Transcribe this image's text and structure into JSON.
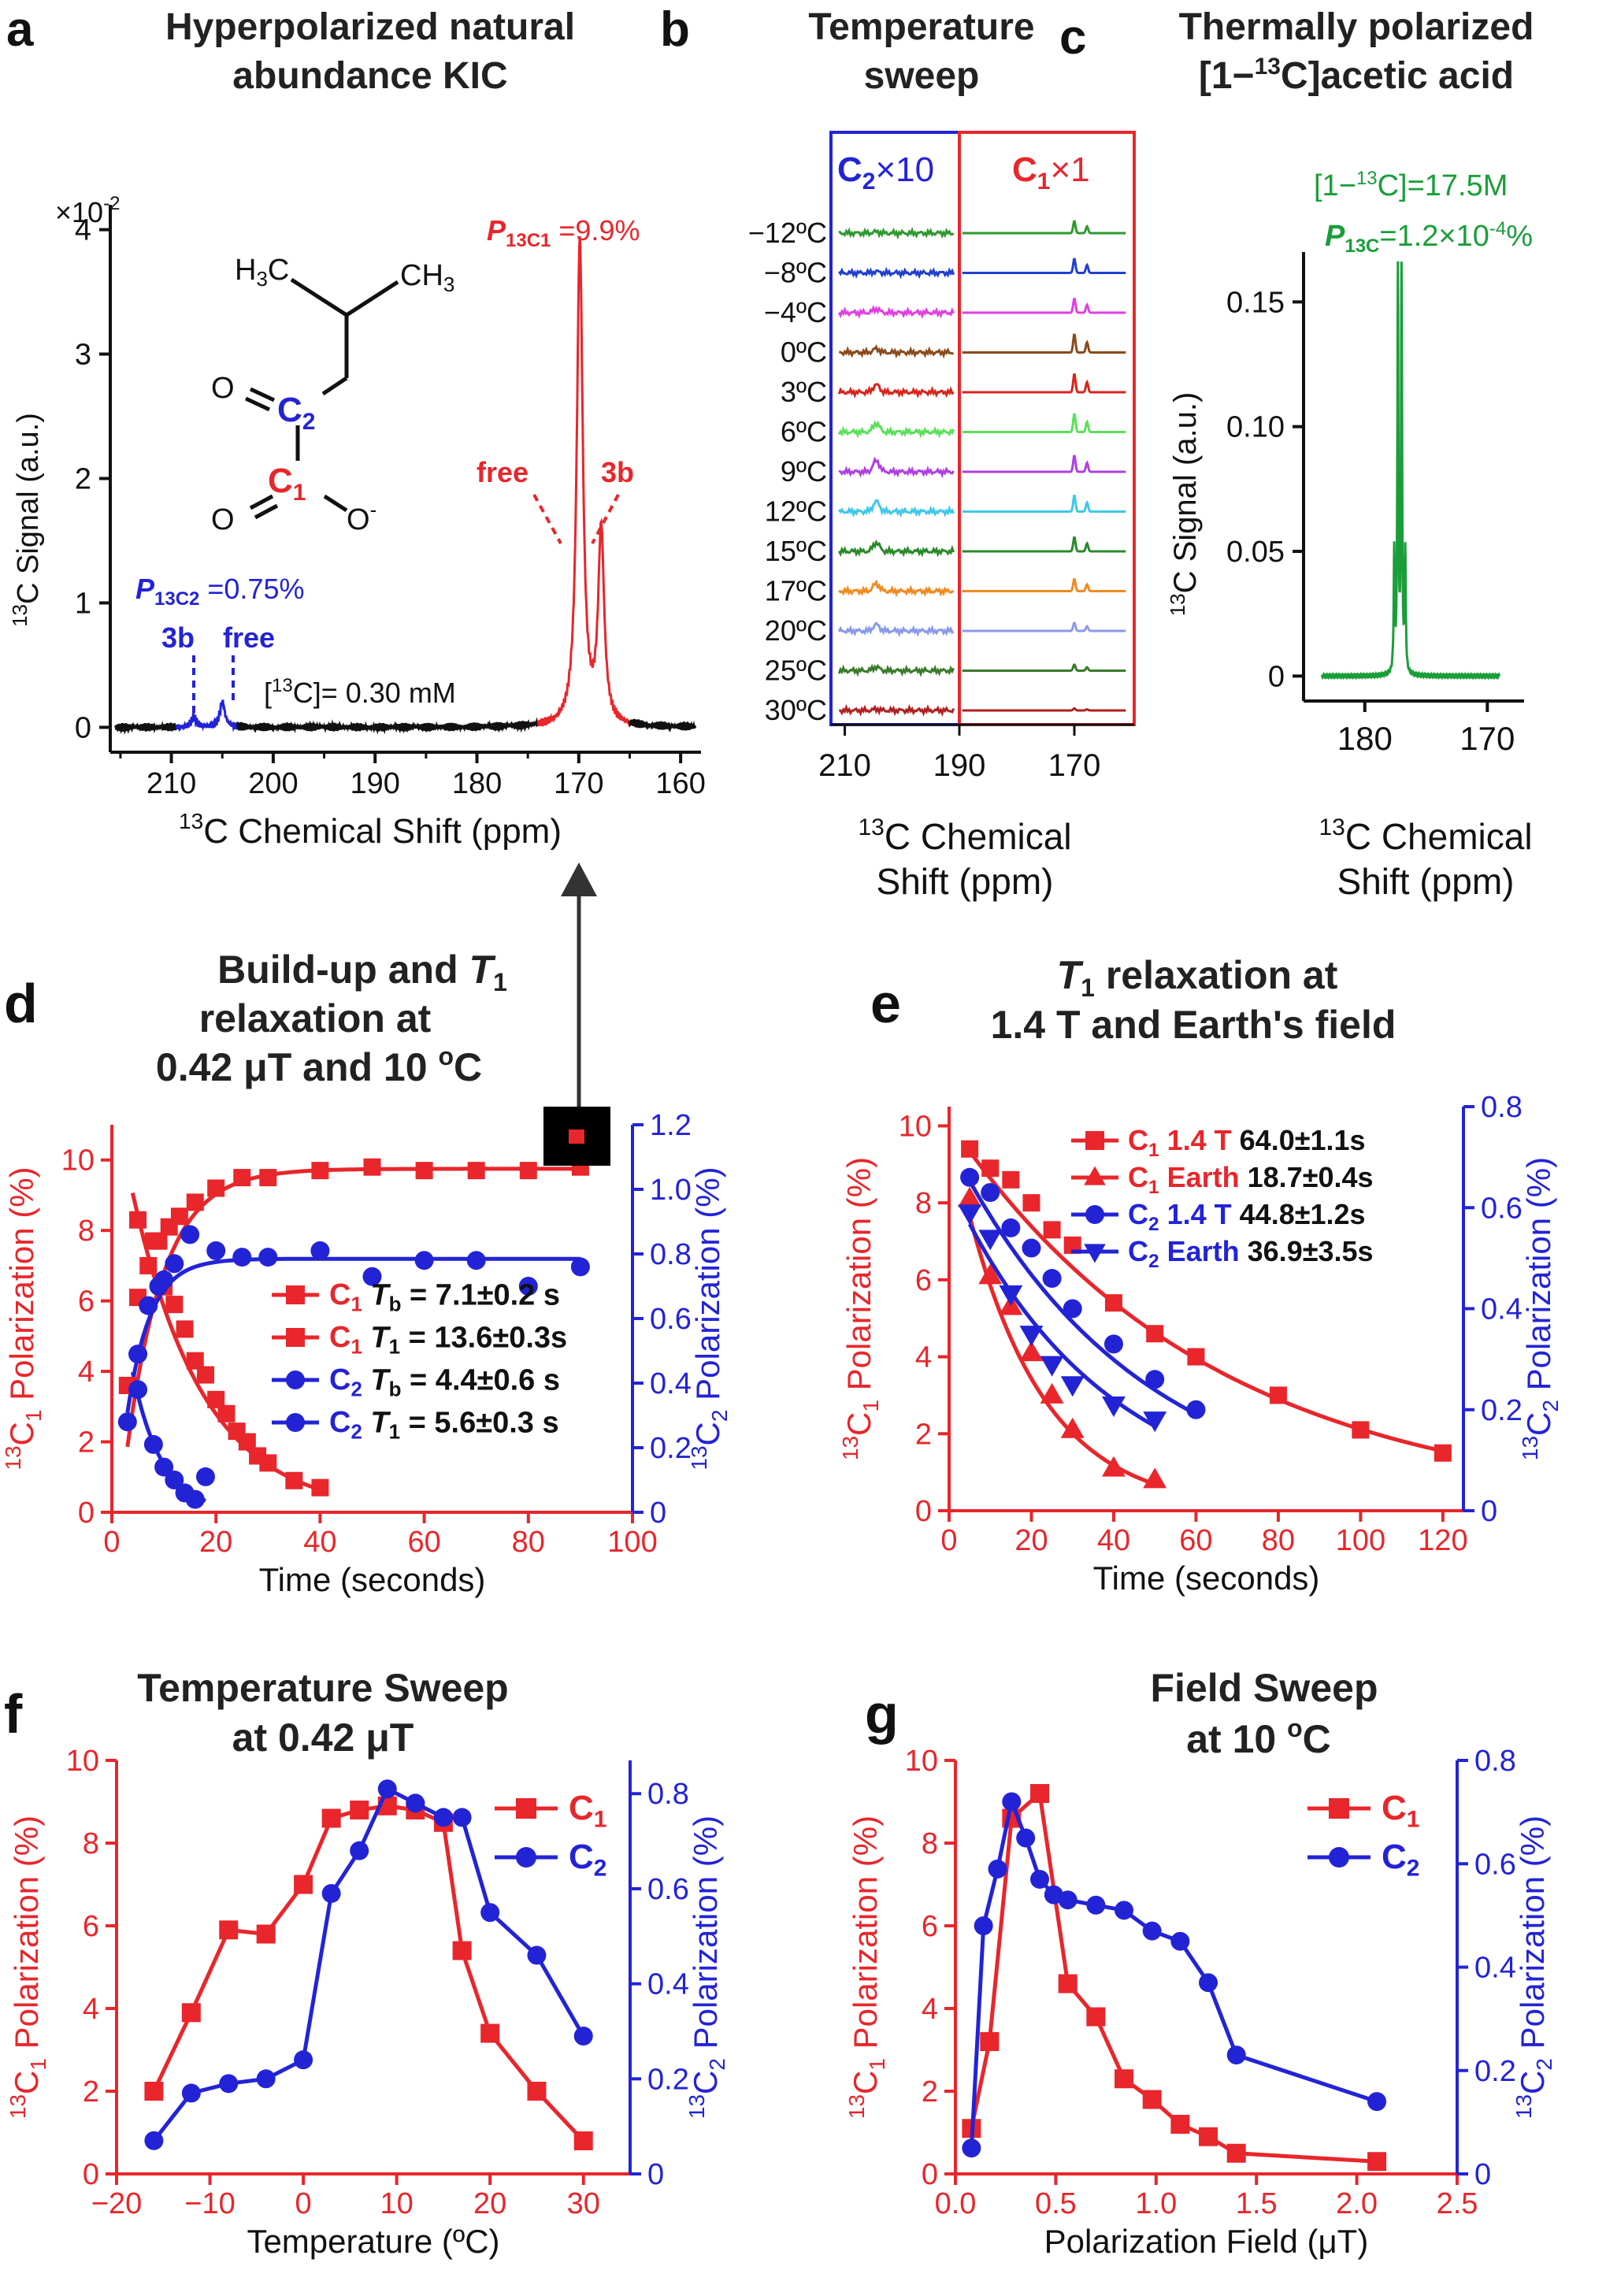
{
  "figure": {
    "colors": {
      "c1": "#e8262b",
      "c2": "#2323d6",
      "black": "#111111",
      "green": "#1a9e3a",
      "purple": "#2323d6"
    },
    "panels": {
      "a": {
        "letter": "a",
        "title_line1": "Hyperpolarized natural",
        "title_line2": "abundance KIC",
        "scale_note": "×10",
        "scale_exp": "-2",
        "ylabel_pre": "13",
        "ylabel_main": "C Signal (a.u.)",
        "xlabel_pre": "13",
        "xlabel_main": "C Chemical Shift (ppm)",
        "xticks": [
          "210",
          "200",
          "190",
          "180",
          "170",
          "160"
        ],
        "yticks": [
          "0",
          "1",
          "2",
          "3",
          "4"
        ],
        "p1_italic": "P",
        "p1_sub": "13C1",
        "p1_value": "=9.9%",
        "p2_italic": "P",
        "p2_sub": "13C2",
        "p2_value": "=0.75%",
        "label_free_red": "free",
        "label_3b_red": "3b",
        "label_3b_blue": "3b",
        "label_free_blue": "free",
        "conc_label": "[",
        "conc_sup": "13",
        "conc_rest": "C]= 0.30 mM",
        "mol": {
          "h3c": "H",
          "h3c_sub": "3",
          "h3c_c": "C",
          "ch3": "CH",
          "ch3_sub": "3",
          "o1": "O",
          "o2": "O",
          "o_minus": "-",
          "c2": "C",
          "c2_sub": "2",
          "c1": "C",
          "c1_sub": "1"
        }
      },
      "b": {
        "letter": "b",
        "title_line1": "Temperature",
        "title_line2": "sweep",
        "box_c2": "C",
        "box_c2_sub": "2",
        "box_c2_rest": "×10",
        "box_c1": "C",
        "box_c1_sub": "1",
        "box_c1_rest": "×1",
        "temps": [
          "−12ºC",
          "−8ºC",
          "−4ºC",
          "0ºC",
          "3ºC",
          "6ºC",
          "9ºC",
          "12ºC",
          "15ºC",
          "17ºC",
          "20ºC",
          "25ºC",
          "30ºC"
        ],
        "trace_colors": [
          "#2e9a2e",
          "#1f3fd0",
          "#e040e0",
          "#8a4a1a",
          "#d8241c",
          "#5ae05a",
          "#b040e0",
          "#40c8e8",
          "#2a8a2a",
          "#f08a20",
          "#8a9ae8",
          "#3a7a2a",
          "#b02020"
        ],
        "xticks": [
          "210",
          "190",
          "170"
        ],
        "xlabel_pre": "13",
        "xlabel_main1": "C Chemical",
        "xlabel_main2": "Shift (ppm)"
      },
      "c": {
        "letter": "c",
        "title_line1": "Thermally polarized",
        "title_line2_pre": "[1−",
        "title_line2_sup": "13",
        "title_line2_post": "C]acetic acid",
        "conc_text_pre": "[1−",
        "conc_text_sup": "13",
        "conc_text_post": "C]=17.5M",
        "pol_italic": "P",
        "pol_sub": "13C",
        "pol_value": "=1.2×10",
        "pol_exp": "-4",
        "pol_unit": "%",
        "yticks": [
          "0",
          "0.05",
          "0.10",
          "0.15"
        ],
        "xticks": [
          "180",
          "170"
        ],
        "ylabel_pre": "13",
        "ylabel_main": "C Signal (a.u.)",
        "xlabel_pre": "13",
        "xlabel_main1": "C Chemical",
        "xlabel_main2": "Shift (ppm)"
      },
      "d": {
        "letter": "d",
        "title_line1": "Build-up and ",
        "title_t": "T",
        "title_t_sub": "1",
        "title_line2": "relaxation at",
        "title_line3_pre": "0.42 μT and 10 ",
        "title_line3_sup": "o",
        "title_line3_post": "C",
        "xlabel": "Time (seconds)",
        "ylabel_left_pre": "13",
        "ylabel_left_c": "C",
        "ylabel_left_sub": "1",
        "ylabel_left_rest": " Polarization (%)",
        "ylabel_right_pre": "13",
        "ylabel_right_c": "C",
        "ylabel_right_sub": "2",
        "ylabel_right_rest": " Polarization (%)",
        "xticks": [
          "0",
          "20",
          "40",
          "60",
          "80",
          "100"
        ],
        "yticks_left": [
          "0",
          "2",
          "4",
          "6",
          "8",
          "10"
        ],
        "yticks_right": [
          "0",
          "0.2",
          "0.4",
          "0.6",
          "0.8",
          "1.0",
          "1.2"
        ],
        "legend": [
          {
            "sym": "C",
            "sub": "1",
            "param": "T",
            "param_sub": "b",
            "value": "= 7.1±0.2 s"
          },
          {
            "sym": "C",
            "sub": "1",
            "param": "T",
            "param_sub": "1",
            "value": "= 13.6±0.3s"
          },
          {
            "sym": "C",
            "sub": "2",
            "param": "T",
            "param_sub": "b",
            "value": "= 4.4±0.6 s"
          },
          {
            "sym": "C",
            "sub": "2",
            "param": "T",
            "param_sub": "1",
            "value": "= 5.6±0.3 s"
          }
        ]
      },
      "e": {
        "letter": "e",
        "title_t": "T",
        "title_t_sub": "1",
        "title_line1_rest": " relaxation at",
        "title_line2": "1.4 T and Earth's field",
        "xlabel": "Time (seconds)",
        "ylabel_left_pre": "13",
        "ylabel_left_c": "C",
        "ylabel_left_sub": "1",
        "ylabel_left_rest": " Polarization (%)",
        "ylabel_right_pre": "13",
        "ylabel_right_c": "C",
        "ylabel_right_sub": "2",
        "ylabel_right_rest": " Polarization (%)",
        "xticks": [
          "0",
          "20",
          "40",
          "60",
          "80",
          "100",
          "120"
        ],
        "yticks_left": [
          "0",
          "2",
          "4",
          "6",
          "8",
          "10"
        ],
        "yticks_right": [
          "0",
          "0.2",
          "0.4",
          "0.6",
          "0.8"
        ],
        "legend": [
          {
            "sym": "C",
            "sub": "1",
            "field": "1.4 T",
            "value": "64.0±1.1s"
          },
          {
            "sym": "C",
            "sub": "1",
            "field": "Earth",
            "value": "18.7±0.4s"
          },
          {
            "sym": "C",
            "sub": "2",
            "field": "1.4 T",
            "value": "44.8±1.2s"
          },
          {
            "sym": "C",
            "sub": "2",
            "field": "Earth",
            "value": "36.9±3.5s"
          }
        ]
      },
      "f": {
        "letter": "f",
        "title_line1": "Temperature Sweep",
        "title_line2": "at 0.42 μT",
        "xlabel": "Temperature (ºC)",
        "ylabel_left_pre": "13",
        "ylabel_left_c": "C",
        "ylabel_left_sub": "1",
        "ylabel_left_rest": " Polarization (%)",
        "ylabel_right_pre": "13",
        "ylabel_right_c": "C",
        "ylabel_right_sub": "2",
        "ylabel_right_rest": " Polarization (%)",
        "xticks": [
          "−20",
          "−10",
          "0",
          "10",
          "20",
          "30"
        ],
        "yticks_left": [
          "0",
          "2",
          "4",
          "6",
          "8",
          "10"
        ],
        "yticks_right": [
          "0",
          "0.2",
          "0.4",
          "0.6",
          "0.8"
        ],
        "legend": [
          {
            "sym": "C",
            "sub": "1"
          },
          {
            "sym": "C",
            "sub": "2"
          }
        ]
      },
      "g": {
        "letter": "g",
        "title_line1": "Field Sweep",
        "title_line2_pre": "at 10 ",
        "title_line2_sup": "o",
        "title_line2_post": "C",
        "xlabel": "Polarization Field (μT)",
        "ylabel_left_pre": "13",
        "ylabel_left_c": "C",
        "ylabel_left_sub": "1",
        "ylabel_left_rest": " Polarization (%)",
        "ylabel_right_pre": "13",
        "ylabel_right_c": "C",
        "ylabel_right_sub": "2",
        "ylabel_right_rest": " Polarization (%)",
        "xticks": [
          "0.0",
          "0.5",
          "1.0",
          "1.5",
          "2.0",
          "2.5"
        ],
        "yticks_left": [
          "0",
          "2",
          "4",
          "6",
          "8",
          "10"
        ],
        "yticks_right": [
          "0",
          "0.2",
          "0.4",
          "0.6",
          "0.8"
        ],
        "legend": [
          {
            "sym": "C",
            "sub": "1"
          },
          {
            "sym": "C",
            "sub": "2"
          }
        ]
      }
    }
  },
  "chart_data": [
    {
      "panel": "a",
      "type": "line",
      "xlabel": "13C Chemical Shift (ppm)",
      "ylabel": "13C Signal (a.u.)",
      "xlim": [
        216,
        158
      ],
      "ylim": [
        -0.2,
        4.2
      ],
      "x_reversed": true,
      "peaks": [
        {
          "name": "C2 3b",
          "x": 207.8,
          "y": 0.08,
          "series": "C2"
        },
        {
          "name": "C2 free",
          "x": 205.0,
          "y": 0.2,
          "series": "C2"
        },
        {
          "name": "C1 free",
          "x": 169.9,
          "y": 3.9,
          "series": "C1"
        },
        {
          "name": "C1 3b",
          "x": 167.8,
          "y": 1.55,
          "series": "C1"
        }
      ]
    },
    {
      "panel": "b",
      "type": "line",
      "xlabel": "13C Chemical Shift (ppm)",
      "x_reversed": true,
      "categories": [
        "−12ºC",
        "−8ºC",
        "−4ºC",
        "0ºC",
        "3ºC",
        "6ºC",
        "9ºC",
        "12ºC",
        "15ºC",
        "17ºC",
        "20ºC",
        "25ºC",
        "30ºC"
      ],
      "c2_peak_heights": [
        0.1,
        0.1,
        0.3,
        0.3,
        0.6,
        0.7,
        0.9,
        0.8,
        0.7,
        0.6,
        0.5,
        0.3,
        0.1
      ],
      "c1_peak_heights": [
        0.6,
        0.7,
        0.7,
        0.9,
        0.9,
        0.9,
        0.8,
        0.8,
        0.7,
        0.6,
        0.4,
        0.3,
        0.1
      ]
    },
    {
      "panel": "c",
      "type": "line",
      "xlabel": "13C Chemical Shift (ppm)",
      "ylabel": "13C Signal (a.u.)",
      "xlim": [
        185,
        167
      ],
      "ylim": [
        -0.01,
        0.17
      ],
      "x_reversed": true,
      "peaks": [
        {
          "x": 177.6,
          "y": 0.048
        },
        {
          "x": 177.3,
          "y": 0.16
        },
        {
          "x": 177.0,
          "y": 0.16
        },
        {
          "x": 176.7,
          "y": 0.048
        }
      ]
    },
    {
      "panel": "d",
      "type": "scatter",
      "xlabel": "Time (seconds)",
      "xlim": [
        0,
        100
      ],
      "ylim_left": [
        0,
        11
      ],
      "ylim_right": [
        0,
        1.2
      ],
      "series": [
        {
          "name": "C1 Tb = 7.1±0.2 s",
          "axis": "left",
          "marker": "square",
          "x": [
            3,
            5,
            7,
            9,
            11,
            13,
            16,
            20,
            25,
            30,
            40,
            50,
            60,
            70,
            80,
            90
          ],
          "y": [
            3.6,
            6.1,
            7.0,
            7.7,
            8.1,
            8.4,
            8.8,
            9.2,
            9.5,
            9.5,
            9.7,
            9.8,
            9.7,
            9.7,
            9.7,
            9.8
          ]
        },
        {
          "name": "C1 T1 = 13.6±0.3s",
          "axis": "left",
          "marker": "square",
          "x": [
            5,
            8,
            10,
            12,
            14,
            16,
            18,
            20,
            22,
            24,
            26,
            28,
            30,
            35,
            40
          ],
          "y": [
            8.3,
            7.7,
            6.4,
            5.9,
            5.2,
            4.3,
            3.9,
            3.2,
            2.8,
            2.3,
            2.0,
            1.6,
            1.4,
            0.9,
            0.7
          ]
        },
        {
          "name": "C2 Tb = 4.4±0.6 s",
          "axis": "right",
          "marker": "circle",
          "x": [
            3,
            5,
            7,
            9,
            10,
            12,
            15,
            20,
            25,
            30,
            40,
            50,
            60,
            70,
            80,
            90
          ],
          "y": [
            0.28,
            0.49,
            0.64,
            0.7,
            0.72,
            0.77,
            0.86,
            0.81,
            0.79,
            0.79,
            0.81,
            0.73,
            0.78,
            0.78,
            0.7,
            0.76
          ]
        },
        {
          "name": "C2 T1 = 5.6±0.3 s",
          "axis": "right",
          "marker": "circle",
          "x": [
            5,
            8,
            10,
            12,
            14,
            16,
            18
          ],
          "y": [
            0.38,
            0.21,
            0.14,
            0.1,
            0.06,
            0.04,
            0.11
          ]
        }
      ]
    },
    {
      "panel": "e",
      "type": "scatter",
      "xlabel": "Time (seconds)",
      "xlim": [
        0,
        125
      ],
      "ylim_left": [
        0,
        10.5
      ],
      "ylim_right": [
        0,
        0.8
      ],
      "series": [
        {
          "name": "C1 1.4 T 64.0±1.1s",
          "axis": "left",
          "marker": "square",
          "x": [
            5,
            10,
            15,
            20,
            25,
            30,
            40,
            50,
            60,
            80,
            100,
            120
          ],
          "y": [
            9.4,
            8.9,
            8.6,
            8.0,
            7.3,
            6.9,
            5.4,
            4.6,
            4.0,
            3.0,
            2.1,
            1.5
          ]
        },
        {
          "name": "C1 Earth 18.7±0.4s",
          "axis": "left",
          "marker": "triangle-up",
          "x": [
            5,
            10,
            15,
            20,
            25,
            30,
            40,
            50
          ],
          "y": [
            8.1,
            6.1,
            5.3,
            4.1,
            3.0,
            2.1,
            1.1,
            0.8
          ]
        },
        {
          "name": "C2 1.4 T 44.8±1.2s",
          "axis": "right",
          "marker": "circle",
          "x": [
            5,
            10,
            15,
            20,
            25,
            30,
            40,
            50,
            60
          ],
          "y": [
            0.66,
            0.63,
            0.56,
            0.52,
            0.46,
            0.4,
            0.33,
            0.26,
            0.2
          ]
        },
        {
          "name": "C2 Earth 36.9±3.5s",
          "axis": "right",
          "marker": "triangle-down",
          "x": [
            5,
            10,
            15,
            20,
            25,
            30,
            40,
            50
          ],
          "y": [
            0.59,
            0.54,
            0.43,
            0.35,
            0.29,
            0.25,
            0.21,
            0.18
          ]
        }
      ]
    },
    {
      "panel": "f",
      "type": "line",
      "xlabel": "Temperature (ºC)",
      "xlim": [
        -20,
        35
      ],
      "ylim_left": [
        0,
        10
      ],
      "ylim_right": [
        0,
        0.87
      ],
      "series": [
        {
          "name": "C1",
          "axis": "left",
          "marker": "square",
          "x": [
            -16,
            -12,
            -8,
            -4,
            0,
            3,
            6,
            9,
            12,
            15,
            17,
            20,
            25,
            30
          ],
          "y": [
            2.0,
            3.9,
            5.9,
            5.8,
            7.0,
            8.6,
            8.8,
            8.9,
            8.8,
            8.5,
            5.4,
            3.4,
            2.0,
            0.8
          ]
        },
        {
          "name": "C2",
          "axis": "right",
          "marker": "circle",
          "x": [
            -16,
            -12,
            -8,
            -4,
            0,
            3,
            6,
            9,
            12,
            15,
            17,
            20,
            25,
            30
          ],
          "y": [
            0.07,
            0.17,
            0.19,
            0.2,
            0.24,
            0.59,
            0.68,
            0.81,
            0.78,
            0.75,
            0.75,
            0.55,
            0.46,
            0.29
          ]
        }
      ]
    },
    {
      "panel": "g",
      "type": "line",
      "xlabel": "Polarization Field (μT)",
      "xlim": [
        0,
        2.5
      ],
      "ylim_left": [
        0,
        10
      ],
      "ylim_right": [
        0,
        0.8
      ],
      "series": [
        {
          "name": "C1",
          "axis": "left",
          "marker": "square",
          "x": [
            0.08,
            0.17,
            0.28,
            0.42,
            0.56,
            0.7,
            0.84,
            0.98,
            1.12,
            1.26,
            1.4,
            2.1
          ],
          "y": [
            1.1,
            3.2,
            8.6,
            9.2,
            4.6,
            3.8,
            2.3,
            1.8,
            1.2,
            0.9,
            0.5,
            0.3
          ]
        },
        {
          "name": "C2",
          "axis": "right",
          "marker": "circle",
          "x": [
            0.08,
            0.14,
            0.21,
            0.28,
            0.35,
            0.42,
            0.49,
            0.56,
            0.7,
            0.84,
            0.98,
            1.12,
            1.26,
            1.4,
            2.1
          ],
          "y": [
            0.05,
            0.48,
            0.59,
            0.72,
            0.65,
            0.57,
            0.54,
            0.53,
            0.52,
            0.51,
            0.47,
            0.45,
            0.37,
            0.23,
            0.14
          ]
        }
      ]
    }
  ]
}
